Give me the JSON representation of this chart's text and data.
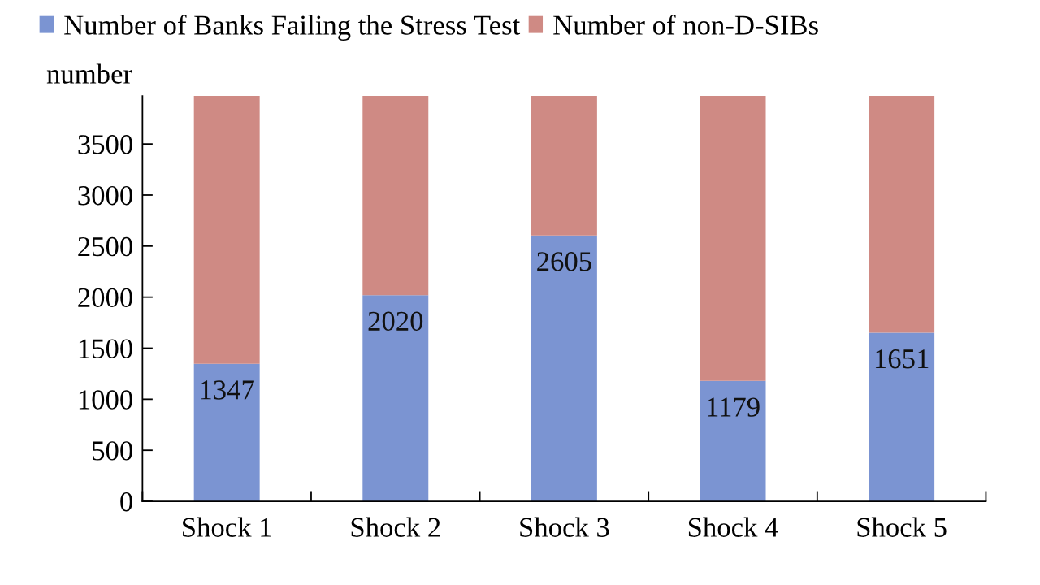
{
  "chart_data": {
    "type": "bar",
    "stacked": true,
    "ylabel": "number",
    "categories": [
      "Shock 1",
      "Shock 2",
      "Shock 3",
      "Shock 4",
      "Shock 5"
    ],
    "series": [
      {
        "name": "Number of Banks Failing the Stress Test",
        "color": "#7b94d2",
        "values": [
          1347,
          2020,
          2605,
          1179,
          1651
        ],
        "value_labels": [
          "1347",
          "2020",
          "2605",
          "1179",
          "1651"
        ]
      },
      {
        "name": "Number of non-D-SIBs",
        "color": "#cf8a84",
        "values": [
          2623,
          1950,
          1365,
          2791,
          2319
        ]
      }
    ],
    "ylim": [
      0,
      3970
    ],
    "yticks": [
      0,
      500,
      1000,
      1500,
      2000,
      2500,
      3000,
      3500
    ],
    "legend": "top",
    "grid": false
  }
}
